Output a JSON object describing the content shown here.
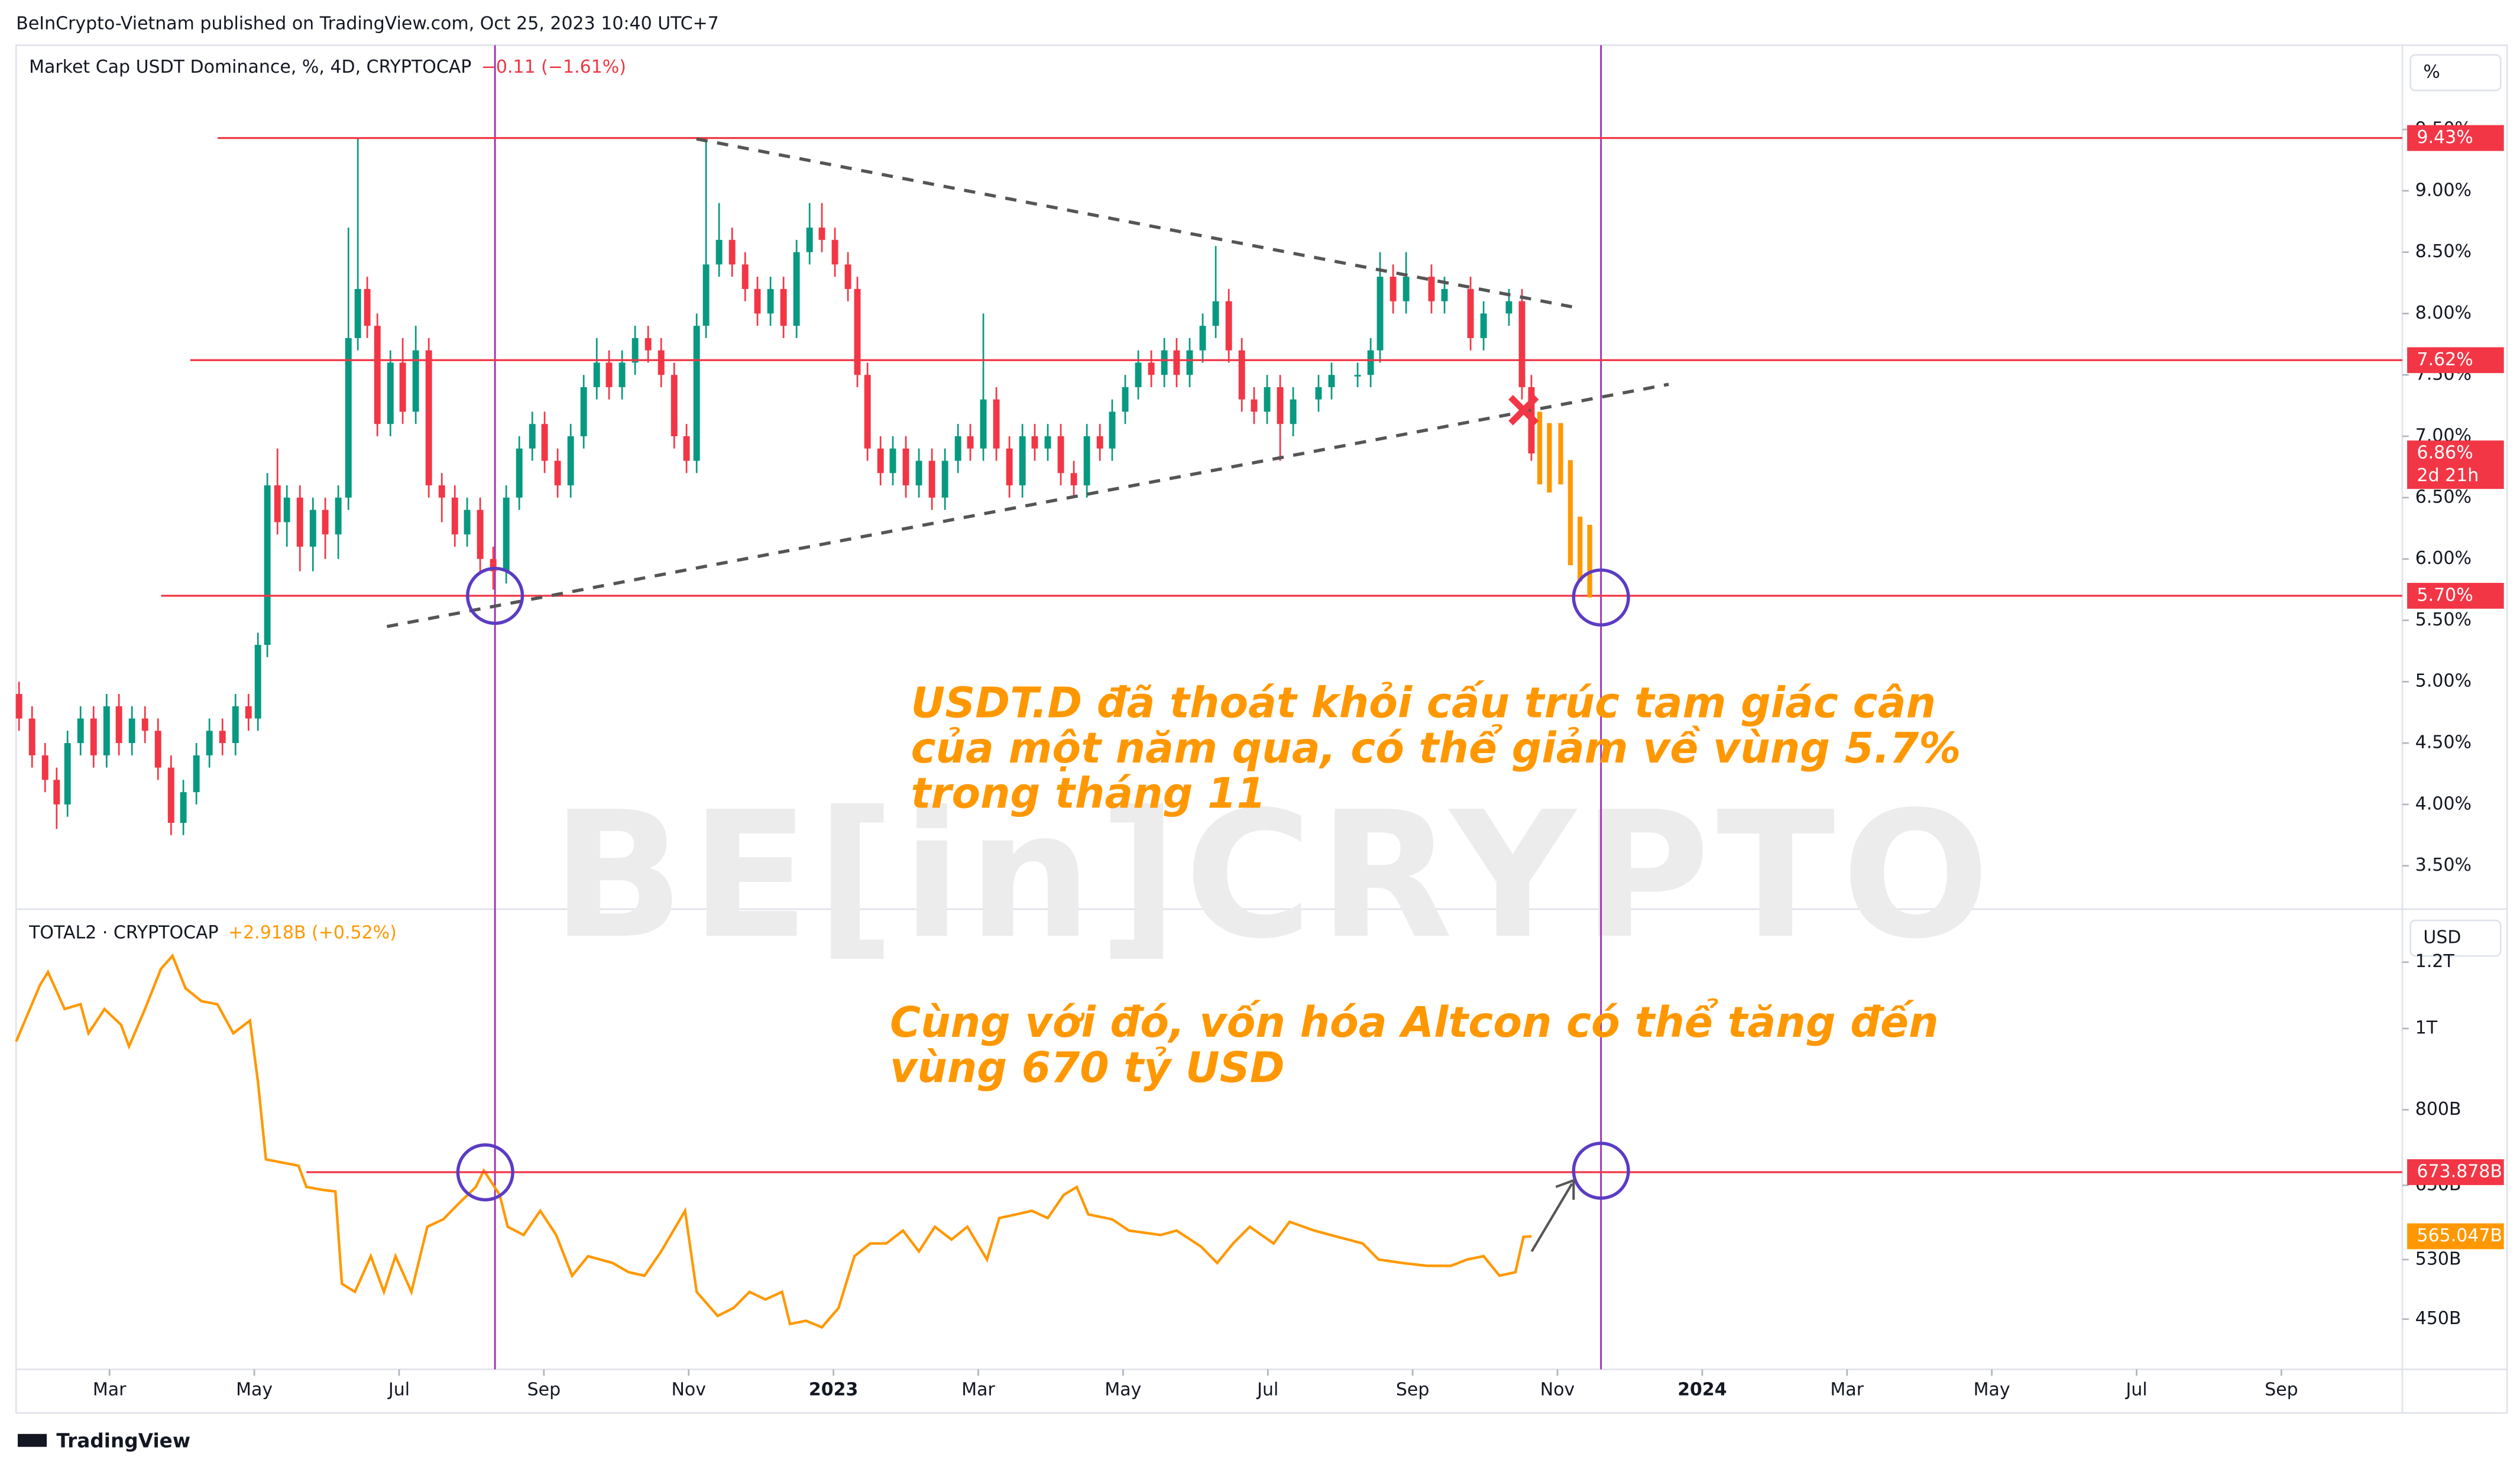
{
  "header": "BeInCrypto-Vietnam published on TradingView.com, Oct 25, 2023 10:40 UTC+7",
  "footer": "TradingView",
  "watermark": "BE[in]CRYPTO",
  "chart_data": [
    {
      "type": "candlestick",
      "title": "Market Cap USDT Dominance, %, 4D, CRYPTOCAP",
      "change": "−0.11 (−1.61%)",
      "unit": "%",
      "up_color": "#089981",
      "down_color": "#f23645",
      "xlim": [
        0.71,
        33.67
      ],
      "ylim": [
        3.16,
        10.16
      ],
      "yticks": [
        {
          "value": 3.5,
          "label": "3.50%"
        },
        {
          "value": 4,
          "label": "4.00%"
        },
        {
          "value": 4.5,
          "label": "4.50%"
        },
        {
          "value": 5,
          "label": "5.00%"
        },
        {
          "value": 5.5,
          "label": "5.50%"
        },
        {
          "value": 6,
          "label": "6.00%"
        },
        {
          "value": 6.5,
          "label": "6.50%"
        },
        {
          "value": 7,
          "label": "7.00%"
        },
        {
          "value": 7.5,
          "label": "7.50%"
        },
        {
          "value": 8,
          "label": "8.00%"
        },
        {
          "value": 8.5,
          "label": "8.50%"
        },
        {
          "value": 9,
          "label": "9.00%"
        },
        {
          "value": 9.5,
          "label": "9.50%"
        }
      ],
      "levels": [
        {
          "value": 9.43,
          "label": "9.43%"
        },
        {
          "value": 7.62,
          "label": "7.62%"
        },
        {
          "value": 5.7,
          "label": "5.70%"
        }
      ],
      "last_label": "6.86%",
      "countdown": "2d 21h",
      "annotation": [
        "USDT.D đã thoát khỏi cấu trúc tam giác cân",
        "của một năm qua, có thể giảm về vùng 5.7%",
        "trong tháng 11"
      ],
      "x": [
        0.75,
        0.93,
        1.11,
        1.27,
        1.42,
        1.6,
        1.78,
        1.96,
        2.13,
        2.31,
        2.49,
        2.67,
        2.85,
        3.02,
        3.2,
        3.38,
        3.56,
        3.74,
        3.92,
        4.05,
        4.18,
        4.32,
        4.45,
        4.63,
        4.81,
        4.98,
        5.16,
        5.3,
        5.43,
        5.56,
        5.7,
        5.88,
        6.05,
        6.23,
        6.41,
        6.59,
        6.77,
        6.94,
        7.12,
        7.3,
        7.48,
        7.66,
        7.84,
        8.01,
        8.19,
        8.37,
        8.55,
        8.73,
        8.9,
        9.08,
        9.26,
        9.44,
        9.62,
        9.8,
        9.97,
        10.11,
        10.24,
        10.42,
        10.6,
        10.78,
        10.95,
        11.13,
        11.31,
        11.49,
        11.67,
        11.84,
        12.02,
        12.2,
        12.33,
        12.47,
        12.65,
        12.82,
        13.0,
        13.18,
        13.36,
        13.54,
        13.72,
        13.89,
        14.07,
        14.25,
        14.43,
        14.61,
        14.78,
        14.96,
        15.14,
        15.32,
        15.5,
        15.68,
        15.85,
        16.03,
        16.21,
        16.39,
        16.57,
        16.74,
        16.92,
        17.1,
        17.28,
        17.46,
        17.64,
        17.81,
        17.99,
        18.17,
        18.35,
        18.7,
        18.88,
        19.24,
        19.42,
        19.55,
        19.73,
        19.91,
        20.26,
        20.44,
        20.8,
        20.98,
        21.33,
        21.51,
        21.64
      ],
      "ohlc": [
        [
          4.9,
          5.0,
          4.6,
          4.7
        ],
        [
          4.7,
          4.8,
          4.3,
          4.4
        ],
        [
          4.4,
          4.5,
          4.1,
          4.2
        ],
        [
          4.2,
          4.3,
          3.8,
          4.0
        ],
        [
          4.0,
          4.6,
          3.9,
          4.5
        ],
        [
          4.5,
          4.8,
          4.4,
          4.7
        ],
        [
          4.7,
          4.8,
          4.3,
          4.4
        ],
        [
          4.4,
          4.9,
          4.3,
          4.8
        ],
        [
          4.8,
          4.9,
          4.4,
          4.5
        ],
        [
          4.5,
          4.8,
          4.4,
          4.7
        ],
        [
          4.7,
          4.8,
          4.5,
          4.6
        ],
        [
          4.6,
          4.7,
          4.2,
          4.3
        ],
        [
          4.3,
          4.4,
          3.75,
          3.85
        ],
        [
          3.85,
          4.2,
          3.75,
          4.1
        ],
        [
          4.1,
          4.5,
          4.0,
          4.4
        ],
        [
          4.4,
          4.7,
          4.3,
          4.6
        ],
        [
          4.6,
          4.7,
          4.4,
          4.5
        ],
        [
          4.5,
          4.9,
          4.4,
          4.8
        ],
        [
          4.8,
          4.9,
          4.6,
          4.7
        ],
        [
          4.7,
          5.4,
          4.6,
          5.3
        ],
        [
          5.3,
          6.7,
          5.2,
          6.6
        ],
        [
          6.6,
          6.9,
          6.2,
          6.3
        ],
        [
          6.3,
          6.6,
          6.1,
          6.5
        ],
        [
          6.5,
          6.6,
          5.9,
          6.1
        ],
        [
          6.1,
          6.5,
          5.9,
          6.4
        ],
        [
          6.4,
          6.5,
          6.0,
          6.2
        ],
        [
          6.2,
          6.6,
          6.0,
          6.5
        ],
        [
          6.5,
          8.7,
          6.4,
          7.8
        ],
        [
          7.8,
          9.43,
          7.7,
          8.2
        ],
        [
          8.2,
          8.3,
          7.8,
          7.9
        ],
        [
          7.9,
          8.0,
          7.0,
          7.1
        ],
        [
          7.1,
          7.7,
          7.0,
          7.6
        ],
        [
          7.6,
          7.8,
          7.1,
          7.2
        ],
        [
          7.2,
          7.9,
          7.1,
          7.7
        ],
        [
          7.7,
          7.8,
          6.5,
          6.6
        ],
        [
          6.6,
          6.7,
          6.3,
          6.5
        ],
        [
          6.5,
          6.6,
          6.1,
          6.2
        ],
        [
          6.2,
          6.5,
          6.1,
          6.4
        ],
        [
          6.4,
          6.5,
          5.9,
          6.0
        ],
        [
          6.0,
          6.1,
          5.75,
          5.9
        ],
        [
          5.9,
          6.6,
          5.8,
          6.5
        ],
        [
          6.5,
          7.0,
          6.4,
          6.9
        ],
        [
          6.9,
          7.2,
          6.8,
          7.1
        ],
        [
          7.1,
          7.2,
          6.7,
          6.8
        ],
        [
          6.8,
          6.9,
          6.5,
          6.6
        ],
        [
          6.6,
          7.1,
          6.5,
          7.0
        ],
        [
          7.0,
          7.5,
          6.9,
          7.4
        ],
        [
          7.4,
          7.8,
          7.3,
          7.6
        ],
        [
          7.6,
          7.7,
          7.3,
          7.4
        ],
        [
          7.4,
          7.7,
          7.3,
          7.6
        ],
        [
          7.6,
          7.9,
          7.5,
          7.8
        ],
        [
          7.8,
          7.9,
          7.6,
          7.7
        ],
        [
          7.7,
          7.8,
          7.4,
          7.5
        ],
        [
          7.5,
          7.6,
          6.9,
          7.0
        ],
        [
          7.0,
          7.1,
          6.7,
          6.8
        ],
        [
          6.8,
          8.0,
          6.7,
          7.9
        ],
        [
          7.9,
          9.4,
          7.8,
          8.4
        ],
        [
          8.4,
          8.9,
          8.3,
          8.6
        ],
        [
          8.6,
          8.7,
          8.3,
          8.4
        ],
        [
          8.4,
          8.5,
          8.1,
          8.2
        ],
        [
          8.2,
          8.3,
          7.9,
          8.0
        ],
        [
          8.0,
          8.3,
          7.9,
          8.2
        ],
        [
          8.2,
          8.3,
          7.8,
          7.9
        ],
        [
          7.9,
          8.6,
          7.8,
          8.5
        ],
        [
          8.5,
          8.9,
          8.4,
          8.7
        ],
        [
          8.7,
          8.9,
          8.5,
          8.6
        ],
        [
          8.6,
          8.7,
          8.3,
          8.4
        ],
        [
          8.4,
          8.5,
          8.1,
          8.2
        ],
        [
          8.2,
          8.3,
          7.4,
          7.5
        ],
        [
          7.5,
          7.6,
          6.8,
          6.9
        ],
        [
          6.9,
          7.0,
          6.6,
          6.7
        ],
        [
          6.7,
          7.0,
          6.6,
          6.9
        ],
        [
          6.9,
          7.0,
          6.5,
          6.6
        ],
        [
          6.6,
          6.9,
          6.5,
          6.8
        ],
        [
          6.8,
          6.9,
          6.4,
          6.5
        ],
        [
          6.5,
          6.9,
          6.4,
          6.8
        ],
        [
          6.8,
          7.1,
          6.7,
          7.0
        ],
        [
          7.0,
          7.1,
          6.8,
          6.9
        ],
        [
          6.9,
          8.0,
          6.8,
          7.3
        ],
        [
          7.3,
          7.4,
          6.8,
          6.9
        ],
        [
          6.9,
          7.0,
          6.5,
          6.6
        ],
        [
          6.6,
          7.1,
          6.5,
          7.0
        ],
        [
          7.0,
          7.1,
          6.8,
          6.9
        ],
        [
          6.9,
          7.1,
          6.8,
          7.0
        ],
        [
          7.0,
          7.1,
          6.6,
          6.7
        ],
        [
          6.7,
          6.8,
          6.5,
          6.6
        ],
        [
          6.6,
          7.1,
          6.5,
          7.0
        ],
        [
          7.0,
          7.1,
          6.8,
          6.9
        ],
        [
          6.9,
          7.3,
          6.8,
          7.2
        ],
        [
          7.2,
          7.5,
          7.1,
          7.4
        ],
        [
          7.4,
          7.7,
          7.3,
          7.6
        ],
        [
          7.6,
          7.7,
          7.4,
          7.5
        ],
        [
          7.5,
          7.8,
          7.4,
          7.7
        ],
        [
          7.7,
          7.8,
          7.4,
          7.5
        ],
        [
          7.5,
          7.8,
          7.4,
          7.7
        ],
        [
          7.7,
          8.0,
          7.6,
          7.9
        ],
        [
          7.9,
          8.55,
          7.8,
          8.1
        ],
        [
          8.1,
          8.2,
          7.6,
          7.7
        ],
        [
          7.7,
          7.8,
          7.2,
          7.3
        ],
        [
          7.3,
          7.4,
          7.1,
          7.2
        ],
        [
          7.2,
          7.5,
          7.1,
          7.4
        ],
        [
          7.4,
          7.5,
          6.8,
          7.1
        ],
        [
          7.1,
          7.4,
          7.0,
          7.3
        ],
        [
          7.3,
          7.5,
          7.2,
          7.4
        ],
        [
          7.4,
          7.6,
          7.3,
          7.5
        ],
        [
          7.5,
          7.6,
          7.4,
          7.5
        ],
        [
          7.5,
          7.8,
          7.4,
          7.7
        ],
        [
          7.7,
          8.5,
          7.6,
          8.3
        ],
        [
          8.3,
          8.4,
          8.0,
          8.1
        ],
        [
          8.1,
          8.5,
          8.0,
          8.3
        ],
        [
          8.3,
          8.4,
          8.0,
          8.1
        ],
        [
          8.1,
          8.3,
          8.0,
          8.2
        ],
        [
          8.2,
          8.3,
          7.7,
          7.8
        ],
        [
          7.8,
          8.1,
          7.7,
          8.0
        ],
        [
          8.0,
          8.2,
          7.9,
          8.1
        ],
        [
          8.1,
          8.2,
          7.3,
          7.4
        ],
        [
          7.4,
          7.5,
          6.8,
          6.86
        ]
      ]
    },
    {
      "type": "line",
      "title": "TOTAL2 · CRYPTOCAP",
      "change": "+2.918B (+0.52%)",
      "unit": "USD",
      "color": "#ff9800",
      "log_scale": true,
      "xlim": [
        0.71,
        33.67
      ],
      "ylim": [
        392,
        1376
      ],
      "xticks": [
        {
          "value": 2,
          "label": "Mar"
        },
        {
          "value": 4,
          "label": "May"
        },
        {
          "value": 6,
          "label": "Jul"
        },
        {
          "value": 8,
          "label": "Sep"
        },
        {
          "value": 10,
          "label": "Nov"
        },
        {
          "value": 12,
          "label": "2023"
        },
        {
          "value": 14,
          "label": "Mar"
        },
        {
          "value": 16,
          "label": "May"
        },
        {
          "value": 18,
          "label": "Jul"
        },
        {
          "value": 20,
          "label": "Sep"
        },
        {
          "value": 22,
          "label": "Nov"
        },
        {
          "value": 24,
          "label": "2024"
        },
        {
          "value": 26,
          "label": "Mar"
        },
        {
          "value": 28,
          "label": "May"
        },
        {
          "value": 30,
          "label": "Jul"
        },
        {
          "value": 32,
          "label": "Sep"
        }
      ],
      "yticks": [
        {
          "value": 450,
          "label": "450B"
        },
        {
          "value": 530,
          "label": "530B"
        },
        {
          "value": 650,
          "label": "650B"
        },
        {
          "value": 800,
          "label": "800B"
        },
        {
          "value": 1000,
          "label": "1T"
        },
        {
          "value": 1200,
          "label": "1.2T"
        }
      ],
      "levels": [
        {
          "value": 673.878,
          "label": "673.878B"
        }
      ],
      "last_label": "565.047B",
      "annotation": [
        "Cùng với đó, vốn hóa Altcon có thể tăng đến",
        "vùng 670 tỷ USD"
      ],
      "x": [
        0.71,
        1.04,
        1.15,
        1.38,
        1.6,
        1.71,
        1.93,
        2.16,
        2.27,
        2.49,
        2.71,
        2.87,
        3.05,
        3.27,
        3.49,
        3.71,
        3.94,
        4.05,
        4.16,
        4.38,
        4.61,
        4.72,
        4.94,
        5.12,
        5.21,
        5.39,
        5.61,
        5.79,
        5.95,
        6.17,
        6.39,
        6.61,
        6.83,
        7.06,
        7.17,
        7.39,
        7.5,
        7.72,
        7.95,
        8.17,
        8.39,
        8.61,
        8.95,
        9.17,
        9.39,
        9.62,
        9.95,
        10.11,
        10.4,
        10.62,
        10.84,
        11.06,
        11.29,
        11.4,
        11.62,
        11.84,
        12.07,
        12.29,
        12.51,
        12.73,
        12.96,
        13.18,
        13.4,
        13.63,
        13.85,
        14.12,
        14.29,
        14.52,
        14.74,
        14.96,
        15.18,
        15.36,
        15.52,
        15.85,
        16.08,
        16.52,
        16.74,
        17.08,
        17.3,
        17.52,
        17.75,
        18.08,
        18.3,
        18.64,
        18.97,
        19.31,
        19.53,
        19.86,
        20.2,
        20.53,
        20.75,
        20.98,
        21.2,
        21.42,
        21.53,
        21.64
      ],
      "values": [
        965,
        1127,
        1168,
        1055,
        1069,
        987,
        1055,
        1010,
        952,
        1055,
        1178,
        1221,
        1117,
        1078,
        1069,
        987,
        1022,
        864,
        698,
        692,
        686,
        647,
        642,
        639,
        496,
        485,
        535,
        485,
        535,
        485,
        580,
        592,
        619,
        647,
        677,
        633,
        580,
        567,
        606,
        567,
        507,
        535,
        525,
        512,
        507,
        542,
        606,
        485,
        454,
        464,
        485,
        475,
        485,
        444,
        448,
        440,
        464,
        535,
        554,
        554,
        574,
        542,
        580,
        560,
        580,
        530,
        594,
        600,
        606,
        594,
        633,
        647,
        600,
        592,
        574,
        567,
        574,
        549,
        525,
        554,
        580,
        554,
        588,
        574,
        564,
        554,
        530,
        525,
        521,
        521,
        530,
        535,
        507,
        512,
        564,
        565.047
      ]
    }
  ]
}
